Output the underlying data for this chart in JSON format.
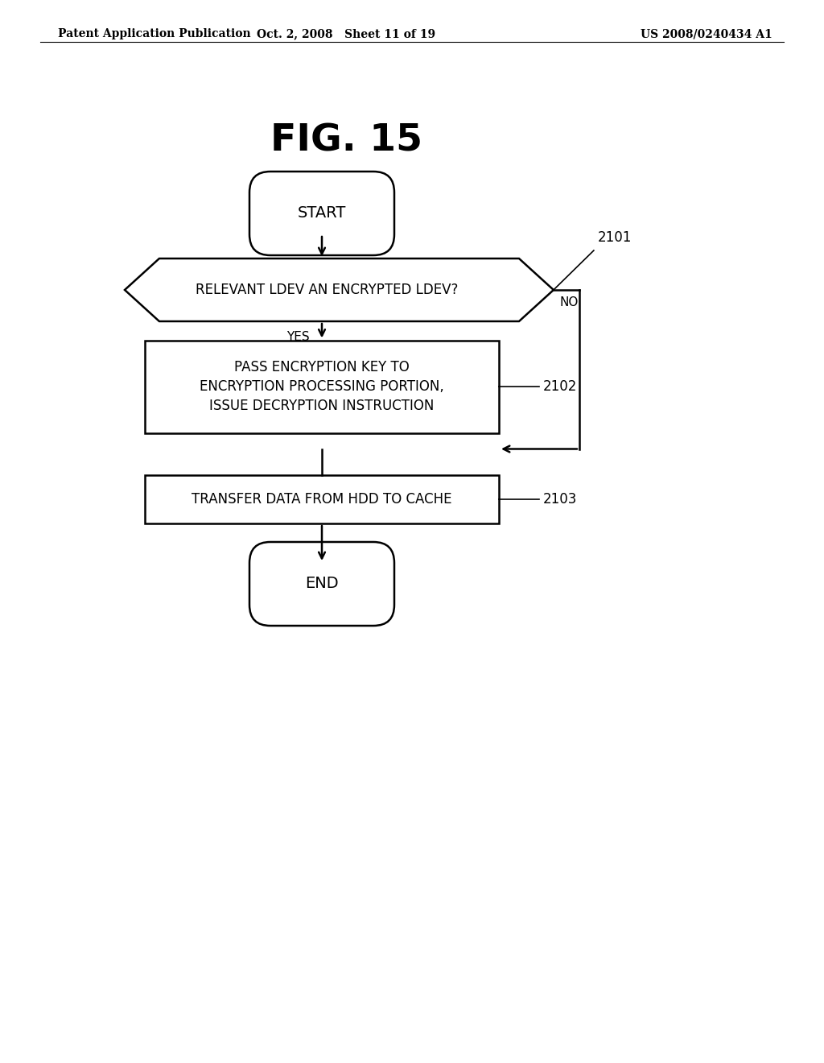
{
  "title": "FIG. 15",
  "header_left": "Patent Application Publication",
  "header_center": "Oct. 2, 2008   Sheet 11 of 19",
  "header_right": "US 2008/0240434 A1",
  "background_color": "#ffffff",
  "text_color": "#000000",
  "fig_title_fontsize": 32,
  "start_label": "START",
  "end_label": "END",
  "decision_label": "RELEVANT LDEV AN ENCRYPTED LDEV?",
  "decision_ref": "2101",
  "process1_label": "PASS ENCRYPTION KEY TO\nENCRYPTION PROCESSING PORTION,\nISSUE DECRYPTION INSTRUCTION",
  "process1_ref": "2102",
  "process2_label": "TRANSFER DATA FROM HDD TO CACHE",
  "process2_ref": "2103",
  "yes_label": "YES",
  "no_label": "NO"
}
